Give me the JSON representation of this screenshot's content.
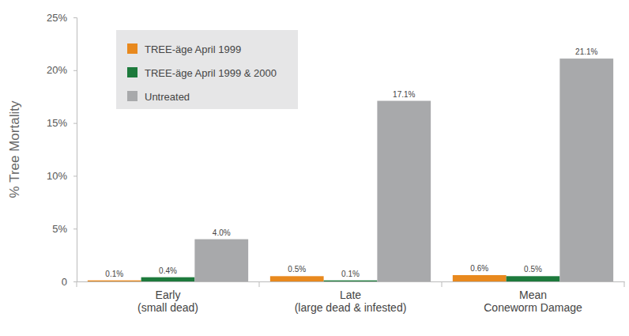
{
  "chart_data": {
    "type": "bar",
    "y_label": "% Tree Mortality",
    "categories": [
      "Early\n(small dead)",
      "Late\n(large dead & infested)",
      "Mean\nConeworm Damage"
    ],
    "series": [
      {
        "name": "TREE-äge April 1999",
        "color": "#e8891e",
        "values": [
          0.1,
          0.5,
          0.6
        ],
        "value_labels": [
          "0.1%",
          "0.5%",
          "0.6%"
        ]
      },
      {
        "name": "TREE-äge April 1999 & 2000",
        "color": "#1d7a3c",
        "values": [
          0.4,
          0.1,
          0.5
        ],
        "value_labels": [
          "0.4%",
          "0.1%",
          "0.5%"
        ]
      },
      {
        "name": "Untreated",
        "color": "#a8a9ab",
        "values": [
          4.0,
          17.1,
          21.1
        ],
        "value_labels": [
          "4.0%",
          "17.1%",
          "21.1%"
        ]
      }
    ],
    "ylim": [
      0,
      25
    ],
    "yticks": [
      0,
      {
        "value": 5,
        "label": "5%"
      },
      {
        "value": 10,
        "label": "10%"
      },
      {
        "value": 15,
        "label": "15%"
      },
      {
        "value": 20,
        "label": "20%"
      },
      {
        "value": 25,
        "label": "25%"
      }
    ],
    "grid": false,
    "legend": "top-left",
    "data_labels": true
  }
}
